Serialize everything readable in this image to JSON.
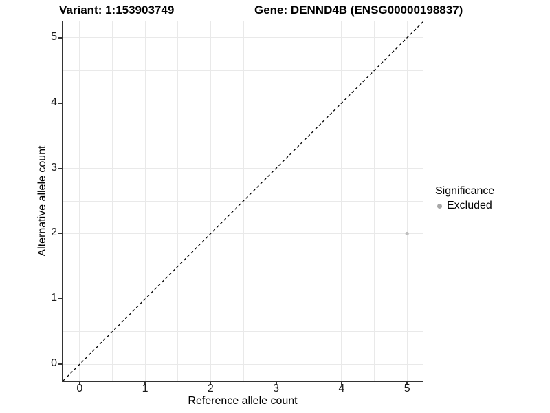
{
  "chart_data": {
    "type": "scatter",
    "title_left": "Variant: 1:153903749",
    "title_right": "Gene: DENND4B (ENSG00000198837)",
    "xlabel": "Reference allele count",
    "ylabel": "Alternative allele count",
    "xlim": [
      -0.25,
      5.25
    ],
    "ylim": [
      -0.25,
      5.25
    ],
    "x_ticks": [
      0,
      1,
      2,
      3,
      4,
      5
    ],
    "y_ticks": [
      0,
      1,
      2,
      3,
      4,
      5
    ],
    "grid_step": 0.5,
    "grid_on": true,
    "identity_line": {
      "style": "dashed",
      "from": [
        -0.25,
        -0.25
      ],
      "to": [
        5.25,
        5.25
      ],
      "color": "#000000"
    },
    "series": [
      {
        "name": "Excluded",
        "point_color": "#bebebe",
        "point_radius": 2.6,
        "points": [
          {
            "x": 5,
            "y": 2
          }
        ]
      }
    ],
    "legend": {
      "title": "Significance",
      "position": "right",
      "items": [
        {
          "label": "Excluded",
          "color": "#a8a8a8"
        }
      ]
    },
    "colors": {
      "background": "#ffffff",
      "gridline": "#e9e9e9",
      "axis_line": "#333333",
      "text": "#000000"
    }
  }
}
